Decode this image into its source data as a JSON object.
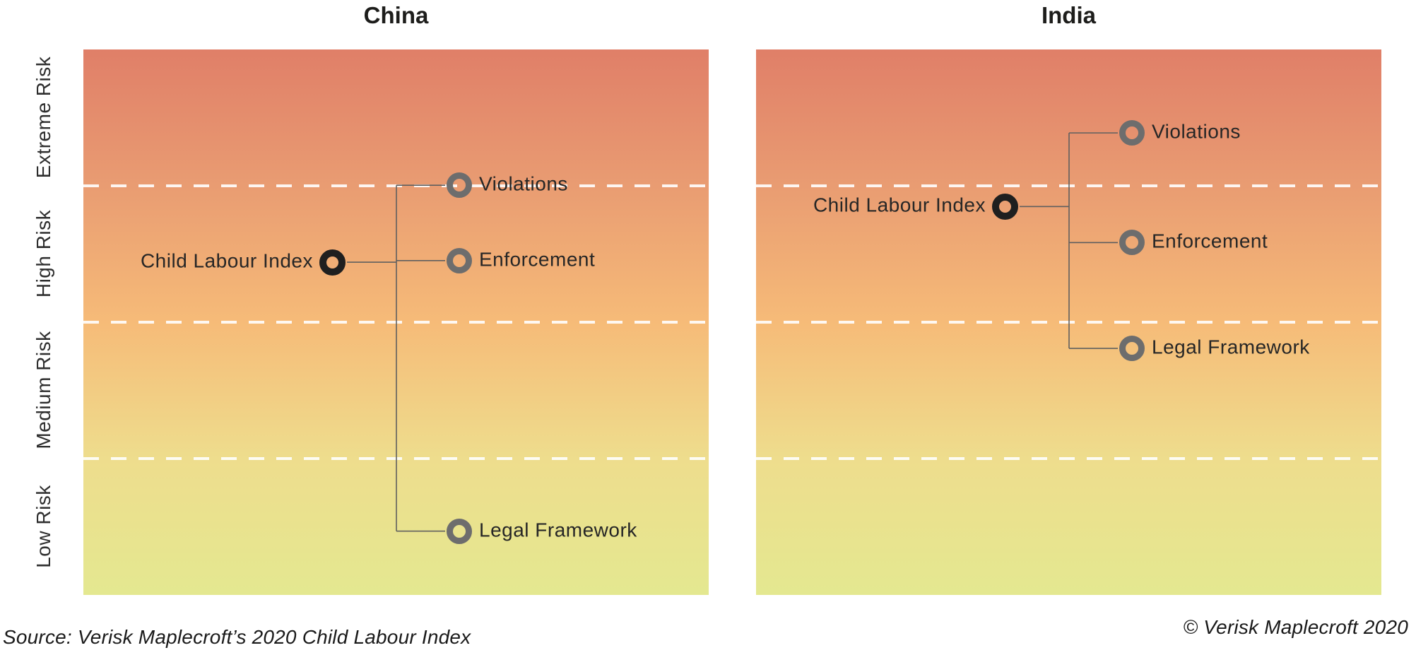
{
  "y_axis": {
    "bands": [
      "Extreme Risk",
      "High Risk",
      "Medium Risk",
      "Low Risk"
    ]
  },
  "footer": {
    "source": "Source: Verisk Maplecroft’s 2020 Child Labour Index",
    "copyright": "© Verisk Maplecroft 2020"
  },
  "colors": {
    "gradient_stops": [
      "#e07f68",
      "#e99c72",
      "#f6bb78",
      "#eedd8d",
      "#e4e890"
    ],
    "dashed_line": "rgba(255,255,255,0.9)",
    "connector": "#5f5f5f",
    "index_marker": "#1f1f1f",
    "indicator_marker": "#6d6d6d",
    "label_text": "#262626"
  },
  "chart_data": {
    "type": "scatter",
    "y_axis": {
      "categories": [
        "Extreme Risk",
        "High Risk",
        "Medium Risk",
        "Low Risk"
      ],
      "scale_range": [
        0,
        10
      ],
      "band_boundaries": [
        2.5,
        5,
        7.5
      ],
      "orientation": "0 (top, most extreme risk) to 10 (bottom, lowest risk)",
      "grid": "dashed white lines at band boundaries"
    },
    "panels": [
      {
        "title": "China",
        "index": {
          "label": "Child Labour Index",
          "score": 3.9,
          "band": "High Risk"
        },
        "indicators": [
          {
            "label": "Violations",
            "score": 2.49,
            "band": "Extreme/High boundary"
          },
          {
            "label": "Enforcement",
            "score": 3.87,
            "band": "High Risk"
          },
          {
            "label": "Legal Framework",
            "score": 8.83,
            "band": "Low Risk"
          }
        ]
      },
      {
        "title": "India",
        "index": {
          "label": "Child Labour Index",
          "score": 2.88,
          "band": "High Risk"
        },
        "indicators": [
          {
            "label": "Violations",
            "score": 1.53,
            "band": "Extreme Risk"
          },
          {
            "label": "Enforcement",
            "score": 3.54,
            "band": "High Risk"
          },
          {
            "label": "Legal Framework",
            "score": 5.48,
            "band": "Medium Risk"
          }
        ]
      }
    ]
  }
}
